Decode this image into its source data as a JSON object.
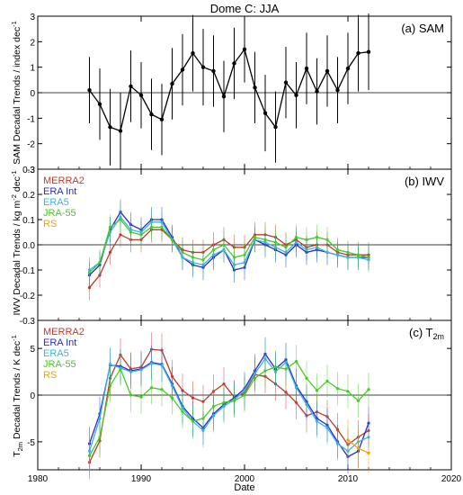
{
  "figure": {
    "title": "Dome C: JJA",
    "xlabel": "Date"
  },
  "chart_data": [
    {
      "type": "line",
      "panel_label": "(a) SAM",
      "ylabel": "SAM Decadal Trends / index dec",
      "ylabel_sup": "-1",
      "ylim": [
        -3,
        3
      ],
      "yticks": [
        -3,
        -2,
        -1,
        0,
        1,
        2,
        3
      ],
      "xlim": [
        1980,
        2020
      ],
      "xticks": [
        1980,
        1990,
        2000,
        2010,
        2020
      ],
      "zero_line": true,
      "series": [
        {
          "color": "#000000",
          "x": [
            1985,
            1986,
            1987,
            1988,
            1989,
            1990,
            1991,
            1992,
            1993,
            1994,
            1995,
            1996,
            1997,
            1998,
            1999,
            2000,
            2001,
            2002,
            2003,
            2004,
            2005,
            2006,
            2007,
            2008,
            2009,
            2010,
            2011,
            2012
          ],
          "y": [
            0.1,
            -0.45,
            -1.35,
            -1.5,
            0.25,
            -0.1,
            -0.85,
            -1.05,
            0.35,
            0.9,
            1.55,
            1.0,
            0.85,
            -0.15,
            1.15,
            1.7,
            0.2,
            -0.8,
            -1.35,
            0.4,
            -0.1,
            0.95,
            0.05,
            0.85,
            0.1,
            0.95,
            1.55,
            1.6
          ],
          "err": [
            1.3,
            1.4,
            1.5,
            1.5,
            1.4,
            1.3,
            1.4,
            1.4,
            1.4,
            1.4,
            1.5,
            1.5,
            1.4,
            1.4,
            1.4,
            1.3,
            1.4,
            1.5,
            1.4,
            1.4,
            1.3,
            1.4,
            1.3,
            1.4,
            1.3,
            1.4,
            1.5,
            1.5
          ]
        }
      ]
    },
    {
      "type": "line",
      "panel_label": "(b) IWV",
      "ylabel": "IWV Decadal Trends / kg m",
      "ylabel_sup": "-2",
      "ylabel_tail": " dec",
      "ylabel_sup2": "-1",
      "ylim": [
        -0.3,
        0.3
      ],
      "yticks": [
        -0.3,
        -0.2,
        -0.1,
        0.0,
        0.1,
        0.2,
        0.3
      ],
      "ytick_labels": [
        "-0.3",
        "-0.2",
        "-0.1",
        "0.0",
        "0.1",
        "0.2",
        "0.3"
      ],
      "xlim": [
        1980,
        2020
      ],
      "xticks": [
        1980,
        1990,
        2000,
        2010,
        2020
      ],
      "zero_line": true,
      "series": [
        {
          "name": "MERRA2",
          "color": "#c0392b",
          "x": [
            1985,
            1986,
            1987,
            1988,
            1989,
            1990,
            1991,
            1992,
            1993,
            1994,
            1995,
            1996,
            1997,
            1998,
            1999,
            2000,
            2001,
            2002,
            2003,
            2004,
            2005,
            2006,
            2007,
            2008,
            2009,
            2010,
            2011,
            2012
          ],
          "y": [
            -0.17,
            -0.12,
            -0.03,
            0.04,
            0.02,
            0.02,
            0.06,
            0.06,
            0.02,
            -0.02,
            -0.03,
            -0.03,
            0.0,
            0.02,
            -0.01,
            -0.01,
            0.04,
            0.04,
            0.03,
            0.0,
            0.02,
            -0.01,
            0.0,
            0.0,
            -0.03,
            -0.04,
            -0.04,
            -0.04
          ],
          "err": [
            0.05,
            0.05,
            0.05,
            0.05,
            0.05,
            0.05,
            0.05,
            0.05,
            0.05,
            0.05,
            0.05,
            0.05,
            0.05,
            0.05,
            0.05,
            0.05,
            0.05,
            0.05,
            0.05,
            0.05,
            0.05,
            0.05,
            0.05,
            0.05,
            0.05,
            0.05,
            0.05,
            0.05
          ]
        },
        {
          "name": "ERA Int",
          "color": "#2a2ad0",
          "x": [
            1985,
            1986,
            1987,
            1988,
            1989,
            1990,
            1991,
            1992,
            1993,
            1994,
            1995,
            1996,
            1997,
            1998,
            1999,
            2000,
            2001,
            2002,
            2003,
            2004,
            2005,
            2006,
            2007,
            2008,
            2009,
            2010,
            2011,
            2012
          ],
          "y": [
            -0.12,
            -0.08,
            0.06,
            0.13,
            0.08,
            0.06,
            0.1,
            0.1,
            0.03,
            -0.05,
            -0.08,
            -0.09,
            -0.05,
            -0.02,
            -0.1,
            -0.09,
            0.02,
            0.0,
            -0.02,
            -0.04,
            0.0,
            -0.03,
            -0.02,
            -0.03,
            -0.04,
            -0.05,
            -0.05,
            -0.05
          ],
          "err": [
            0.05,
            0.05,
            0.05,
            0.05,
            0.05,
            0.05,
            0.05,
            0.05,
            0.05,
            0.05,
            0.05,
            0.05,
            0.05,
            0.05,
            0.05,
            0.05,
            0.05,
            0.05,
            0.05,
            0.05,
            0.05,
            0.05,
            0.05,
            0.05,
            0.05,
            0.05,
            0.05,
            0.05
          ]
        },
        {
          "name": "ERA5",
          "color": "#33b5e5",
          "x": [
            1985,
            1986,
            1987,
            1988,
            1989,
            1990,
            1991,
            1992,
            1993,
            1994,
            1995,
            1996,
            1997,
            1998,
            1999,
            2000,
            2001,
            2002,
            2003,
            2004,
            2005,
            2006,
            2007,
            2008,
            2009,
            2010,
            2011,
            2012
          ],
          "y": [
            -0.1,
            -0.07,
            0.05,
            0.11,
            0.06,
            0.05,
            0.09,
            0.09,
            0.02,
            -0.05,
            -0.07,
            -0.08,
            -0.04,
            -0.02,
            -0.08,
            -0.07,
            0.02,
            0.01,
            -0.01,
            -0.03,
            0.01,
            -0.02,
            -0.01,
            -0.03,
            -0.04,
            -0.05,
            -0.05,
            -0.06
          ],
          "err": [
            0.05,
            0.05,
            0.05,
            0.05,
            0.05,
            0.05,
            0.05,
            0.05,
            0.05,
            0.05,
            0.05,
            0.05,
            0.05,
            0.05,
            0.05,
            0.05,
            0.05,
            0.05,
            0.05,
            0.05,
            0.05,
            0.05,
            0.05,
            0.05,
            0.05,
            0.05,
            0.05,
            0.05
          ]
        },
        {
          "name": "JRA-55",
          "color": "#44cc22",
          "x": [
            1985,
            1986,
            1987,
            1988,
            1989,
            1990,
            1991,
            1992,
            1993,
            1994,
            1995,
            1996,
            1997,
            1998,
            1999,
            2000,
            2001,
            2002,
            2003,
            2004,
            2005,
            2006,
            2007,
            2008,
            2009,
            2010,
            2011,
            2012
          ],
          "y": [
            -0.11,
            -0.07,
            0.07,
            0.1,
            0.05,
            0.04,
            0.07,
            0.07,
            0.02,
            -0.03,
            -0.05,
            -0.06,
            -0.02,
            0.0,
            -0.05,
            -0.04,
            0.03,
            0.02,
            0.01,
            -0.01,
            0.03,
            0.02,
            0.03,
            0.02,
            -0.02,
            -0.03,
            -0.04,
            -0.05
          ],
          "err": [
            0.05,
            0.05,
            0.05,
            0.05,
            0.05,
            0.05,
            0.05,
            0.05,
            0.05,
            0.05,
            0.05,
            0.05,
            0.05,
            0.05,
            0.05,
            0.05,
            0.05,
            0.05,
            0.05,
            0.05,
            0.05,
            0.05,
            0.05,
            0.05,
            0.05,
            0.05,
            0.05,
            0.05
          ]
        }
      ],
      "legend": [
        {
          "name": "MERRA2",
          "color": "#c0392b"
        },
        {
          "name": "ERA Int",
          "color": "#2a2ad0"
        },
        {
          "name": "ERA5",
          "color": "#33b5e5"
        },
        {
          "name": "JRA-55",
          "color": "#44cc22"
        },
        {
          "name": "RS",
          "color": "#f0a000"
        }
      ]
    },
    {
      "type": "line",
      "panel_label": "(c) T",
      "panel_label_sub": "2m",
      "ylabel": "T",
      "ylabel_sub": "2m",
      "ylabel_tail": " Decadal Trends / K dec",
      "ylabel_sup": "-1",
      "ylim": [
        -8,
        8
      ],
      "yticks": [
        -5,
        0,
        5
      ],
      "xlim": [
        1980,
        2020
      ],
      "xticks": [
        1980,
        1990,
        2000,
        2010,
        2020
      ],
      "xtick_labels": [
        "1980",
        "1990",
        "2000",
        "2010",
        "2020"
      ],
      "zero_line": true,
      "series": [
        {
          "name": "MERRA2",
          "color": "#c0392b",
          "x": [
            1985,
            1986,
            1987,
            1988,
            1989,
            1990,
            1991,
            1992,
            1993,
            1994,
            1995,
            1996,
            1997,
            1998,
            1999,
            2000,
            2001,
            2002,
            2003,
            2004,
            2005,
            2006,
            2007,
            2008,
            2009,
            2010,
            2011,
            2012
          ],
          "y": [
            -7.2,
            -4.9,
            1.8,
            4.3,
            2.8,
            3.0,
            4.9,
            4.8,
            2.0,
            0.5,
            -0.3,
            -0.7,
            0.4,
            1.2,
            -0.2,
            0.2,
            2.2,
            2.0,
            1.2,
            0.3,
            -0.8,
            -2.2,
            -1.8,
            -2.3,
            -3.7,
            -5.3,
            -4.5,
            -3.8
          ],
          "err": [
            1.8,
            1.8,
            1.8,
            1.8,
            1.8,
            1.8,
            1.8,
            1.8,
            1.8,
            1.8,
            1.8,
            1.8,
            1.8,
            1.8,
            1.8,
            1.8,
            1.8,
            1.8,
            1.8,
            1.8,
            1.8,
            1.8,
            1.8,
            1.8,
            1.8,
            1.8,
            1.8,
            1.8
          ]
        },
        {
          "name": "ERA Int",
          "color": "#2a2ad0",
          "x": [
            1985,
            1986,
            1987,
            1988,
            1989,
            1990,
            1991,
            1992,
            1993,
            1994,
            1995,
            1996,
            1997,
            1998,
            1999,
            2000,
            2001,
            2002,
            2003,
            2004,
            2005,
            2006,
            2007,
            2008,
            2009,
            2010,
            2011,
            2012
          ],
          "y": [
            -5.2,
            -2.0,
            3.2,
            3.1,
            2.6,
            2.8,
            3.5,
            3.3,
            1.2,
            -1.2,
            -2.5,
            -3.5,
            -2.0,
            -1.0,
            -0.3,
            0.7,
            2.6,
            4.4,
            2.8,
            3.8,
            1.0,
            -0.7,
            -2.5,
            -3.2,
            -5.0,
            -6.6,
            -6.0,
            -3.0
          ],
          "err": [
            1.8,
            1.8,
            1.8,
            1.8,
            1.8,
            1.8,
            1.8,
            1.8,
            1.8,
            1.8,
            1.8,
            1.8,
            1.8,
            1.8,
            1.8,
            1.8,
            1.8,
            1.8,
            1.8,
            1.8,
            1.8,
            1.8,
            1.8,
            1.8,
            1.8,
            1.8,
            1.8,
            1.8
          ]
        },
        {
          "name": "ERA5",
          "color": "#33b5e5",
          "x": [
            1985,
            1986,
            1987,
            1988,
            1989,
            1990,
            1991,
            1992,
            1993,
            1994,
            1995,
            1996,
            1997,
            1998,
            1999,
            2000,
            2001,
            2002,
            2003,
            2004,
            2005,
            2006,
            2007,
            2008,
            2009,
            2010,
            2011,
            2012
          ],
          "y": [
            -6.0,
            -2.5,
            3.3,
            2.9,
            2.5,
            2.7,
            3.4,
            3.2,
            1.0,
            -1.4,
            -2.8,
            -3.8,
            -2.2,
            -1.2,
            -0.5,
            0.5,
            2.3,
            3.9,
            2.5,
            3.5,
            0.8,
            -1.0,
            -2.8,
            -3.5,
            -5.2,
            -6.0,
            -5.0,
            -4.5
          ],
          "err": [
            1.8,
            1.8,
            1.8,
            1.8,
            1.8,
            1.8,
            1.8,
            1.8,
            1.8,
            1.8,
            1.8,
            1.8,
            1.8,
            1.8,
            1.8,
            1.8,
            1.8,
            1.8,
            1.8,
            1.8,
            1.8,
            1.8,
            1.8,
            1.8,
            1.8,
            1.8,
            1.8,
            1.8
          ]
        },
        {
          "name": "JRA-55",
          "color": "#44cc22",
          "x": [
            1985,
            1986,
            1987,
            1988,
            1989,
            1990,
            1991,
            1992,
            1993,
            1994,
            1995,
            1996,
            1997,
            1998,
            1999,
            2000,
            2001,
            2002,
            2003,
            2004,
            2005,
            2006,
            2007,
            2008,
            2009,
            2010,
            2011,
            2012
          ],
          "y": [
            -6.5,
            -4.5,
            1.0,
            2.8,
            0.0,
            -0.2,
            0.8,
            0.6,
            -0.3,
            -1.8,
            -2.8,
            -2.5,
            -1.2,
            -0.8,
            -0.6,
            0.0,
            1.8,
            2.6,
            3.0,
            2.8,
            3.6,
            1.8,
            0.5,
            1.5,
            0.7,
            0.4,
            -0.6,
            0.6
          ],
          "err": [
            1.8,
            1.8,
            1.8,
            1.8,
            1.8,
            1.8,
            1.8,
            1.8,
            1.8,
            1.8,
            1.8,
            1.8,
            1.8,
            1.8,
            1.8,
            1.8,
            1.8,
            1.8,
            1.8,
            1.8,
            1.8,
            1.8,
            1.8,
            1.8,
            1.8,
            1.8,
            1.8,
            1.8
          ]
        },
        {
          "name": "RS",
          "color": "#f0a000",
          "x": [
            2010,
            2011,
            2012
          ],
          "y": [
            -4.8,
            -5.7,
            -6.2
          ],
          "err": [
            2.2,
            2.2,
            2.2
          ]
        }
      ],
      "legend": [
        {
          "name": "MERRA2",
          "color": "#c0392b"
        },
        {
          "name": "ERA Int",
          "color": "#2a2ad0"
        },
        {
          "name": "ERA5",
          "color": "#33b5e5"
        },
        {
          "name": "JRA-55",
          "color": "#44cc22"
        },
        {
          "name": "RS",
          "color": "#f0a000"
        }
      ]
    }
  ]
}
